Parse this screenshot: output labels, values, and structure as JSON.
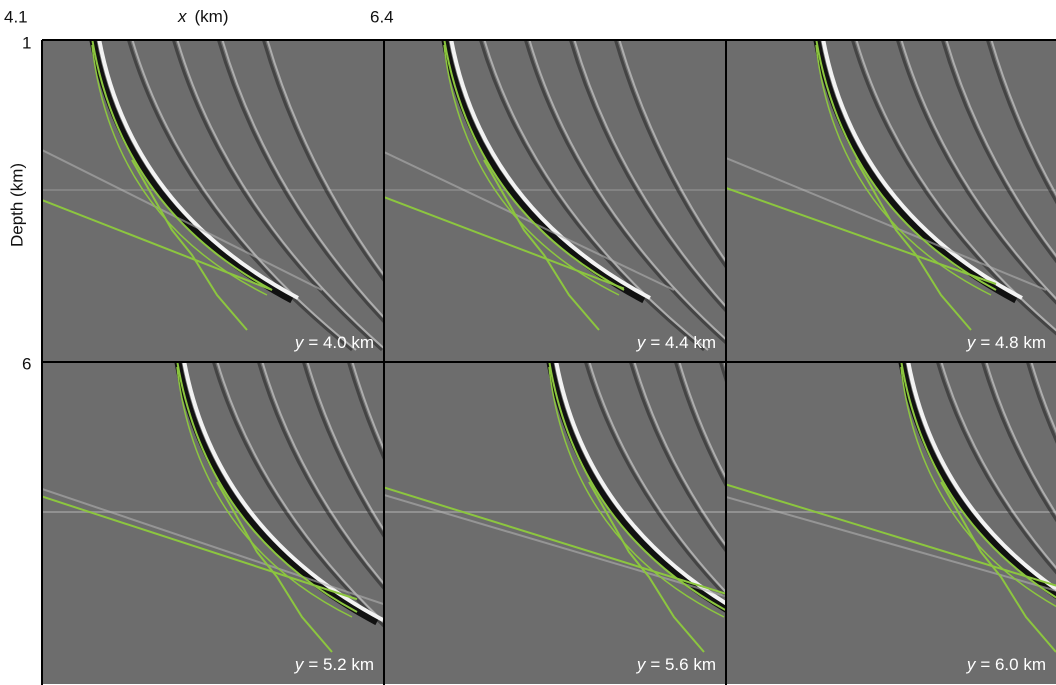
{
  "x_axis": {
    "start": "4.1",
    "label_var": "x",
    "label_unit": "(km)",
    "end": "6.4"
  },
  "y_axis": {
    "start": "1",
    "label": "Depth (km)",
    "end": "6"
  },
  "panels": [
    {
      "var": "y",
      "text": "= 4.0 km"
    },
    {
      "var": "y",
      "text": "= 4.4 km"
    },
    {
      "var": "y",
      "text": "= 4.8 km"
    },
    {
      "var": "y",
      "text": "= 5.2 km"
    },
    {
      "var": "y",
      "text": "= 5.6 km"
    },
    {
      "var": "y",
      "text": "= 6.0 km"
    }
  ]
}
